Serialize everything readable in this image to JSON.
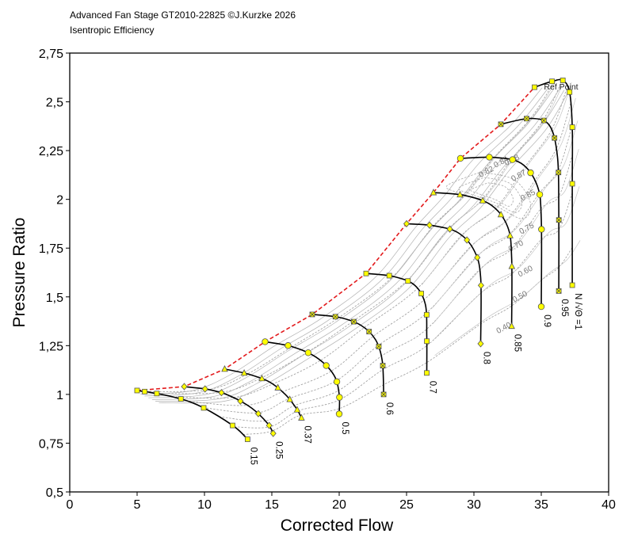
{
  "header": {
    "title": "Advanced Fan Stage GT2010-22825 ©J.Kurzke 2026",
    "subtitle": "Isentropic Efficiency"
  },
  "chart_data": {
    "type": "line",
    "title": "Advanced Fan Stage GT2010-22825 ©J.Kurzke 2026",
    "subtitle": "Isentropic Efficiency",
    "xlabel": "Corrected Flow",
    "ylabel": "Pressure Ratio",
    "xlim": [
      0,
      40
    ],
    "ylim": [
      0.5,
      2.75
    ],
    "x_ticks": [
      0,
      5,
      10,
      15,
      20,
      25,
      30,
      35,
      40
    ],
    "x_tick_labels": [
      "0",
      "5",
      "10",
      "15",
      "20",
      "25",
      "30",
      "35",
      "40"
    ],
    "y_ticks": [
      0.5,
      0.75,
      1,
      1.25,
      1.5,
      1.75,
      2,
      2.25,
      2.5,
      2.75
    ],
    "y_tick_labels": [
      "0,5",
      "0,75",
      "1",
      "1,25",
      "1,5",
      "1,75",
      "2",
      "2,25",
      "2,5",
      "2,75"
    ],
    "colors": {
      "speed_line": "#000000",
      "surge_line": "#e31a1c",
      "contour": "#8c8c8c",
      "marker_fill": "#ffff00",
      "marker_stroke": "#555555"
    },
    "speed_line_label_suffix": "N /√Θ =1",
    "ref_point_label": "Ref Point",
    "speed_lines": [
      {
        "label": "0.15",
        "points": [
          [
            5.0,
            1.02
          ],
          [
            5.5,
            1.015
          ],
          [
            6.0,
            1.01
          ],
          [
            7.5,
            0.99
          ],
          [
            9.0,
            0.96
          ],
          [
            10.5,
            0.91
          ],
          [
            12.3,
            0.83
          ],
          [
            13.2,
            0.77
          ]
        ]
      },
      {
        "label": "0.25",
        "points": [
          [
            8.5,
            1.04
          ],
          [
            10.3,
            1.025
          ],
          [
            11.8,
            0.995
          ],
          [
            13.5,
            0.93
          ],
          [
            14.7,
            0.85
          ],
          [
            15.1,
            0.8
          ]
        ]
      },
      {
        "label": "0.37",
        "points": [
          [
            11.5,
            1.13
          ],
          [
            13.2,
            1.105
          ],
          [
            14.8,
            1.065
          ],
          [
            16.0,
            1.0
          ],
          [
            16.8,
            0.93
          ],
          [
            17.2,
            0.88
          ]
        ]
      },
      {
        "label": "0.5",
        "points": [
          [
            14.5,
            1.27
          ],
          [
            16.5,
            1.245
          ],
          [
            18.3,
            1.19
          ],
          [
            19.6,
            1.1
          ],
          [
            20.0,
            1.0
          ],
          [
            20.0,
            0.9
          ]
        ]
      },
      {
        "label": "0.6",
        "points": [
          [
            18.0,
            1.41
          ],
          [
            20.0,
            1.395
          ],
          [
            21.6,
            1.355
          ],
          [
            22.7,
            1.28
          ],
          [
            23.2,
            1.17
          ],
          [
            23.3,
            1.0
          ]
        ]
      },
      {
        "label": "0.7",
        "points": [
          [
            22.0,
            1.62
          ],
          [
            24.0,
            1.605
          ],
          [
            25.6,
            1.56
          ],
          [
            26.4,
            1.46
          ],
          [
            26.5,
            1.3
          ],
          [
            26.5,
            1.11
          ]
        ]
      },
      {
        "label": "0.8",
        "points": [
          [
            25.0,
            1.875
          ],
          [
            27.0,
            1.865
          ],
          [
            28.8,
            1.83
          ],
          [
            30.0,
            1.74
          ],
          [
            30.5,
            1.6
          ],
          [
            30.5,
            1.26
          ]
        ]
      },
      {
        "label": "0.85",
        "points": [
          [
            27.0,
            2.035
          ],
          [
            29.3,
            2.02
          ],
          [
            31.3,
            1.97
          ],
          [
            32.5,
            1.86
          ],
          [
            32.8,
            1.7
          ],
          [
            32.8,
            1.35
          ]
        ]
      },
      {
        "label": "0.9",
        "points": [
          [
            29.0,
            2.21
          ],
          [
            31.5,
            2.215
          ],
          [
            33.5,
            2.185
          ],
          [
            34.7,
            2.07
          ],
          [
            35.0,
            1.9
          ],
          [
            35.0,
            1.45
          ]
        ]
      },
      {
        "label": "0.95",
        "points": [
          [
            32.0,
            2.385
          ],
          [
            34.2,
            2.415
          ],
          [
            35.6,
            2.38
          ],
          [
            36.2,
            2.22
          ],
          [
            36.3,
            1.95
          ],
          [
            36.3,
            1.53
          ]
        ]
      },
      {
        "label": "N /√Θ =1",
        "points": [
          [
            34.5,
            2.575
          ],
          [
            35.8,
            2.605
          ],
          [
            36.6,
            2.61
          ],
          [
            37.1,
            2.55
          ],
          [
            37.3,
            2.37
          ],
          [
            37.3,
            2.08
          ],
          [
            37.3,
            1.56
          ]
        ]
      }
    ],
    "surge_line": [
      [
        5.0,
        1.02
      ],
      [
        8.5,
        1.04
      ],
      [
        11.5,
        1.13
      ],
      [
        14.5,
        1.27
      ],
      [
        18.0,
        1.41
      ],
      [
        22.0,
        1.62
      ],
      [
        25.0,
        1.875
      ],
      [
        27.0,
        2.035
      ],
      [
        29.0,
        2.21
      ],
      [
        32.0,
        2.385
      ],
      [
        34.5,
        2.575
      ]
    ],
    "ref_point": [
      35.2,
      2.58
    ],
    "efficiency_contours": [
      {
        "label": "0.40",
        "x": 32.3,
        "y": 1.33
      },
      {
        "label": "0.50",
        "x": 33.5,
        "y": 1.49
      },
      {
        "label": "0.60",
        "x": 33.9,
        "y": 1.62
      },
      {
        "label": "0.70",
        "x": 33.2,
        "y": 1.75
      },
      {
        "label": "0.75",
        "x": 34.0,
        "y": 1.84
      },
      {
        "label": "0.85",
        "x": 34.1,
        "y": 2.01
      },
      {
        "label": "0.87",
        "x": 33.4,
        "y": 2.11
      },
      {
        "label": "0.88",
        "x": 32.9,
        "y": 2.19
      },
      {
        "label": "0.84",
        "x": 32.1,
        "y": 2.18
      },
      {
        "label": "0.82",
        "x": 31.0,
        "y": 2.13
      }
    ]
  }
}
